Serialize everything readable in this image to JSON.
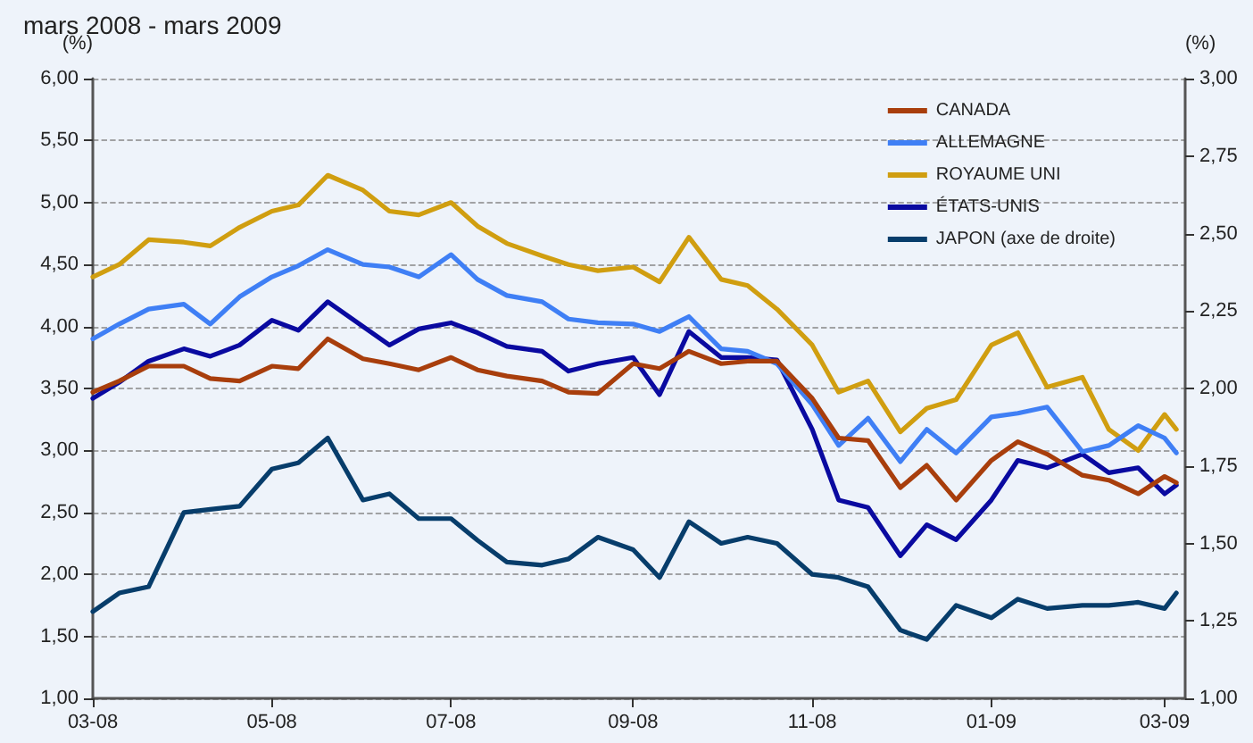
{
  "chart_data": {
    "type": "line",
    "title": "mars 2008 - mars 2009",
    "ylabel": "(%)",
    "y2label": "(%)",
    "x": [
      "2008-03-01",
      "2008-03-10",
      "2008-03-20",
      "2008-04-01",
      "2008-04-10",
      "2008-04-20",
      "2008-05-01",
      "2008-05-10",
      "2008-05-20",
      "2008-06-01",
      "2008-06-10",
      "2008-06-20",
      "2008-07-01",
      "2008-07-10",
      "2008-07-20",
      "2008-08-01",
      "2008-08-10",
      "2008-08-20",
      "2008-09-01",
      "2008-09-10",
      "2008-09-20",
      "2008-10-01",
      "2008-10-10",
      "2008-10-20",
      "2008-11-01",
      "2008-11-10",
      "2008-11-20",
      "2008-12-01",
      "2008-12-10",
      "2008-12-20",
      "2009-01-01",
      "2009-01-10",
      "2009-01-20",
      "2009-02-01",
      "2009-02-10",
      "2009-02-20",
      "2009-03-01",
      "2009-03-05"
    ],
    "series": [
      {
        "name": "CANADA",
        "color": "#a83e0c",
        "values": [
          3.47,
          3.56,
          3.68,
          3.68,
          3.58,
          3.56,
          3.68,
          3.66,
          3.9,
          3.74,
          3.7,
          3.65,
          3.75,
          3.65,
          3.6,
          3.56,
          3.47,
          3.46,
          3.7,
          3.66,
          3.8,
          3.7,
          3.72,
          3.72,
          3.42,
          3.1,
          3.08,
          2.7,
          2.88,
          2.6,
          2.92,
          3.07,
          2.97,
          2.8,
          2.76,
          2.65,
          2.79,
          2.74
        ]
      },
      {
        "name": "ALLEMAGNE",
        "color": "#3f7ff5",
        "values": [
          3.9,
          4.02,
          4.14,
          4.18,
          4.02,
          4.24,
          4.4,
          4.49,
          4.62,
          4.5,
          4.48,
          4.4,
          4.58,
          4.38,
          4.25,
          4.2,
          4.06,
          4.03,
          4.02,
          3.96,
          4.08,
          3.82,
          3.8,
          3.7,
          3.37,
          3.04,
          3.26,
          2.91,
          3.17,
          2.98,
          3.27,
          3.3,
          3.35,
          2.99,
          3.04,
          3.2,
          3.1,
          2.98
        ]
      },
      {
        "name": "ROYAUME UNI",
        "color": "#d09e10",
        "values": [
          4.4,
          4.5,
          4.7,
          4.68,
          4.65,
          4.8,
          4.93,
          4.98,
          5.22,
          5.1,
          4.93,
          4.9,
          5.0,
          4.81,
          4.67,
          4.57,
          4.5,
          4.45,
          4.48,
          4.36,
          4.72,
          4.38,
          4.33,
          4.14,
          3.85,
          3.47,
          3.56,
          3.15,
          3.34,
          3.41,
          3.85,
          3.95,
          3.51,
          3.59,
          3.17,
          3.0,
          3.29,
          3.17
        ]
      },
      {
        "name": "ÉTATS-UNIS",
        "color": "#0a0aa0",
        "values": [
          3.42,
          3.55,
          3.72,
          3.82,
          3.76,
          3.85,
          4.05,
          3.97,
          4.2,
          4.0,
          3.85,
          3.98,
          4.03,
          3.95,
          3.84,
          3.8,
          3.64,
          3.7,
          3.75,
          3.45,
          3.96,
          3.75,
          3.75,
          3.73,
          3.17,
          2.6,
          2.54,
          2.15,
          2.4,
          2.28,
          2.6,
          2.92,
          2.86,
          2.97,
          2.82,
          2.86,
          2.65,
          2.72
        ]
      },
      {
        "name": "JAPON (axe de droite)",
        "color": "#073d6b",
        "axis": "y2",
        "values": [
          1.28,
          1.34,
          1.36,
          1.6,
          1.61,
          1.62,
          1.74,
          1.76,
          1.84,
          1.64,
          1.66,
          1.58,
          1.58,
          1.51,
          1.44,
          1.43,
          1.45,
          1.52,
          1.48,
          1.39,
          1.57,
          1.5,
          1.52,
          1.5,
          1.4,
          1.39,
          1.36,
          1.22,
          1.19,
          1.3,
          1.26,
          1.32,
          1.29,
          1.3,
          1.3,
          1.31,
          1.29,
          1.34
        ]
      }
    ],
    "xlim": [
      "2008-03-01",
      "2009-03-08"
    ],
    "xticks": [
      {
        "value": "2008-03-01",
        "label": "03-08"
      },
      {
        "value": "2008-05-01",
        "label": "05-08"
      },
      {
        "value": "2008-07-01",
        "label": "07-08"
      },
      {
        "value": "2008-09-01",
        "label": "09-08"
      },
      {
        "value": "2008-11-01",
        "label": "11-08"
      },
      {
        "value": "2009-01-01",
        "label": "01-09"
      },
      {
        "value": "2009-03-01",
        "label": "03-09"
      }
    ],
    "ylim": [
      1,
      6
    ],
    "yticks": [
      {
        "value": 1,
        "label": "1,00"
      },
      {
        "value": 1.5,
        "label": "1,50"
      },
      {
        "value": 2,
        "label": "2,00"
      },
      {
        "value": 2.5,
        "label": "2,50"
      },
      {
        "value": 3,
        "label": "3,00"
      },
      {
        "value": 3.5,
        "label": "3,50"
      },
      {
        "value": 4,
        "label": "4,00"
      },
      {
        "value": 4.5,
        "label": "4,50"
      },
      {
        "value": 5,
        "label": "5,00"
      },
      {
        "value": 5.5,
        "label": "5,50"
      },
      {
        "value": 6,
        "label": "6,00"
      }
    ],
    "y2lim": [
      1,
      3
    ],
    "y2ticks": [
      {
        "value": 1,
        "label": "1,00"
      },
      {
        "value": 1.25,
        "label": "1,25"
      },
      {
        "value": 1.5,
        "label": "1,50"
      },
      {
        "value": 1.75,
        "label": "1,75"
      },
      {
        "value": 2,
        "label": "2,00"
      },
      {
        "value": 2.25,
        "label": "2,25"
      },
      {
        "value": 2.5,
        "label": "2,50"
      },
      {
        "value": 2.75,
        "label": "2,75"
      },
      {
        "value": 3,
        "label": "3,00"
      }
    ],
    "grid": "y",
    "legend": "top right",
    "marker": "none",
    "line_style": "solid"
  }
}
